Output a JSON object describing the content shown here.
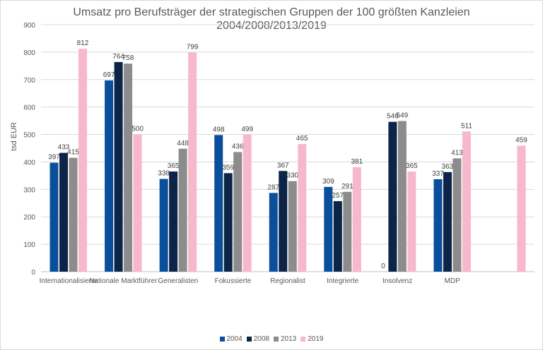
{
  "chart_data": {
    "type": "bar",
    "title_line1": "Umsatz pro Berufsträger der strategischen Gruppen der 100 größten Kanzleien",
    "title_line2": "2004/2008/2013/2019",
    "xlabel": "",
    "ylabel": "tsd EUR",
    "ylim": [
      0,
      900
    ],
    "yticks": [
      "0",
      "100",
      "200",
      "300",
      "400",
      "500",
      "600",
      "700",
      "800",
      "900"
    ],
    "grid": true,
    "legend_position": "bottom",
    "categories": [
      "Internationalisierer",
      "Nationale Marktführer",
      "Generalisten",
      "Fokussierte",
      "Regionalist",
      "Integrierte",
      "Insolvenz",
      "MDP",
      ""
    ],
    "series": [
      {
        "name": "2004",
        "color": "#0a4f9c",
        "values": [
          397,
          697,
          338,
          498,
          287,
          309,
          0,
          337,
          null
        ]
      },
      {
        "name": "2008",
        "color": "#0b2447",
        "values": [
          433,
          764,
          365,
          359,
          367,
          257,
          546,
          363,
          null
        ]
      },
      {
        "name": "2013",
        "color": "#8c8c8c",
        "values": [
          415,
          758,
          448,
          436,
          330,
          291,
          549,
          413,
          null
        ]
      },
      {
        "name": "2019",
        "color": "#f7b8cc",
        "values": [
          812,
          500,
          799,
          499,
          465,
          381,
          365,
          511,
          459
        ]
      }
    ]
  }
}
